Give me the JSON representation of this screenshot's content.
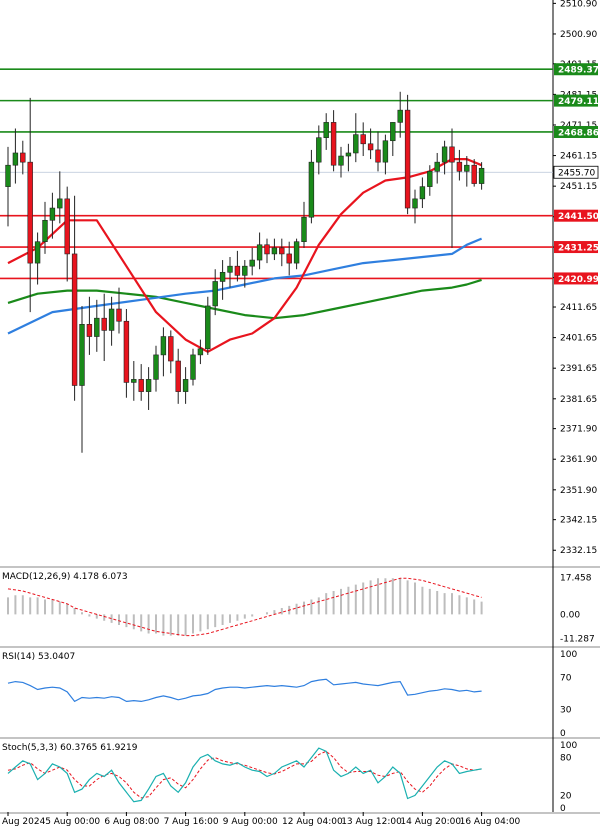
{
  "chart_data": {
    "type": "candlestick",
    "symbol": "",
    "price_axis": {
      "min": 2327.0,
      "max": 2512.0,
      "ticks": [
        "2510.90",
        "2500.90",
        "2491.15",
        "2481.15",
        "2471.15",
        "2461.15",
        "2451.15",
        "2441.15",
        "2431.25",
        "2421.25",
        "2411.65",
        "2401.65",
        "2391.65",
        "2381.65",
        "2371.90",
        "2361.90",
        "2351.90",
        "2342.15",
        "2332.15"
      ]
    },
    "last_price": {
      "label": "2455.70",
      "value": 2455.7,
      "color": "#ffffff"
    },
    "levels": [
      {
        "label": "2489.37",
        "value": 2489.37,
        "color": "#1a8a1a"
      },
      {
        "label": "2479.11",
        "value": 2479.11,
        "color": "#1a8a1a"
      },
      {
        "label": "2468.86",
        "value": 2468.86,
        "color": "#1a8a1a"
      },
      {
        "label": "2441.50",
        "value": 2441.5,
        "color": "#e8141e"
      },
      {
        "label": "2431.25",
        "value": 2431.25,
        "color": "#e8141e"
      },
      {
        "label": "2420.99",
        "value": 2420.99,
        "color": "#e8141e"
      }
    ],
    "candles": [
      {
        "o": 2451,
        "h": 2464,
        "l": 2438,
        "c": 2458
      },
      {
        "o": 2458,
        "h": 2470,
        "l": 2452,
        "c": 2462
      },
      {
        "o": 2462,
        "h": 2466,
        "l": 2455,
        "c": 2459
      },
      {
        "o": 2459,
        "h": 2480,
        "l": 2410,
        "c": 2426
      },
      {
        "o": 2426,
        "h": 2436,
        "l": 2419,
        "c": 2433
      },
      {
        "o": 2433,
        "h": 2446,
        "l": 2429,
        "c": 2440
      },
      {
        "o": 2440,
        "h": 2449,
        "l": 2434,
        "c": 2444
      },
      {
        "o": 2444,
        "h": 2456,
        "l": 2439,
        "c": 2447
      },
      {
        "o": 2447,
        "h": 2451,
        "l": 2420,
        "c": 2429
      },
      {
        "o": 2429,
        "h": 2448,
        "l": 2381,
        "c": 2386
      },
      {
        "o": 2386,
        "h": 2412,
        "l": 2364,
        "c": 2406
      },
      {
        "o": 2406,
        "h": 2415,
        "l": 2396,
        "c": 2402
      },
      {
        "o": 2402,
        "h": 2414,
        "l": 2397,
        "c": 2408
      },
      {
        "o": 2408,
        "h": 2416,
        "l": 2394,
        "c": 2404
      },
      {
        "o": 2404,
        "h": 2415,
        "l": 2399,
        "c": 2411
      },
      {
        "o": 2411,
        "h": 2418,
        "l": 2403,
        "c": 2407
      },
      {
        "o": 2407,
        "h": 2411,
        "l": 2382,
        "c": 2387
      },
      {
        "o": 2387,
        "h": 2394,
        "l": 2381,
        "c": 2388
      },
      {
        "o": 2388,
        "h": 2393,
        "l": 2381,
        "c": 2384
      },
      {
        "o": 2384,
        "h": 2392,
        "l": 2378,
        "c": 2388
      },
      {
        "o": 2388,
        "h": 2399,
        "l": 2384,
        "c": 2396
      },
      {
        "o": 2396,
        "h": 2405,
        "l": 2389,
        "c": 2402
      },
      {
        "o": 2402,
        "h": 2404,
        "l": 2390,
        "c": 2394
      },
      {
        "o": 2394,
        "h": 2398,
        "l": 2380,
        "c": 2384
      },
      {
        "o": 2384,
        "h": 2392,
        "l": 2380,
        "c": 2388
      },
      {
        "o": 2388,
        "h": 2398,
        "l": 2386,
        "c": 2396
      },
      {
        "o": 2396,
        "h": 2401,
        "l": 2393,
        "c": 2398
      },
      {
        "o": 2398,
        "h": 2415,
        "l": 2396,
        "c": 2412
      },
      {
        "o": 2412,
        "h": 2424,
        "l": 2409,
        "c": 2420
      },
      {
        "o": 2420,
        "h": 2427,
        "l": 2414,
        "c": 2423
      },
      {
        "o": 2423,
        "h": 2428,
        "l": 2418,
        "c": 2425
      },
      {
        "o": 2425,
        "h": 2430,
        "l": 2420,
        "c": 2422
      },
      {
        "o": 2422,
        "h": 2427,
        "l": 2418,
        "c": 2425
      },
      {
        "o": 2425,
        "h": 2431,
        "l": 2422,
        "c": 2427
      },
      {
        "o": 2427,
        "h": 2436,
        "l": 2424,
        "c": 2432
      },
      {
        "o": 2432,
        "h": 2434,
        "l": 2426,
        "c": 2429
      },
      {
        "o": 2429,
        "h": 2434,
        "l": 2427,
        "c": 2431
      },
      {
        "o": 2431,
        "h": 2434,
        "l": 2425,
        "c": 2429
      },
      {
        "o": 2429,
        "h": 2433,
        "l": 2422,
        "c": 2426
      },
      {
        "o": 2426,
        "h": 2434,
        "l": 2424,
        "c": 2433
      },
      {
        "o": 2433,
        "h": 2446,
        "l": 2431,
        "c": 2441
      },
      {
        "o": 2441,
        "h": 2463,
        "l": 2439,
        "c": 2459
      },
      {
        "o": 2459,
        "h": 2471,
        "l": 2455,
        "c": 2467
      },
      {
        "o": 2467,
        "h": 2475,
        "l": 2463,
        "c": 2472
      },
      {
        "o": 2472,
        "h": 2476,
        "l": 2456,
        "c": 2458
      },
      {
        "o": 2458,
        "h": 2464,
        "l": 2454,
        "c": 2461
      },
      {
        "o": 2461,
        "h": 2465,
        "l": 2456,
        "c": 2462
      },
      {
        "o": 2462,
        "h": 2475,
        "l": 2459,
        "c": 2468
      },
      {
        "o": 2468,
        "h": 2472,
        "l": 2461,
        "c": 2465
      },
      {
        "o": 2465,
        "h": 2470,
        "l": 2460,
        "c": 2463
      },
      {
        "o": 2463,
        "h": 2469,
        "l": 2456,
        "c": 2459
      },
      {
        "o": 2459,
        "h": 2468,
        "l": 2455,
        "c": 2466
      },
      {
        "o": 2466,
        "h": 2472,
        "l": 2461,
        "c": 2472
      },
      {
        "o": 2472,
        "h": 2482,
        "l": 2467,
        "c": 2476
      },
      {
        "o": 2476,
        "h": 2481,
        "l": 2442,
        "c": 2444
      },
      {
        "o": 2444,
        "h": 2450,
        "l": 2439,
        "c": 2447
      },
      {
        "o": 2447,
        "h": 2454,
        "l": 2444,
        "c": 2451
      },
      {
        "o": 2451,
        "h": 2458,
        "l": 2448,
        "c": 2456
      },
      {
        "o": 2456,
        "h": 2462,
        "l": 2452,
        "c": 2459
      },
      {
        "o": 2459,
        "h": 2466,
        "l": 2455,
        "c": 2464
      },
      {
        "o": 2464,
        "h": 2470,
        "l": 2431,
        "c": 2459
      },
      {
        "o": 2459,
        "h": 2463,
        "l": 2453,
        "c": 2456
      },
      {
        "o": 2456,
        "h": 2461,
        "l": 2451,
        "c": 2458
      },
      {
        "o": 2458,
        "h": 2460,
        "l": 2451,
        "c": 2452
      },
      {
        "o": 2452,
        "h": 2459,
        "l": 2450,
        "c": 2457
      }
    ],
    "ma_fast": {
      "color": "#e8141e",
      "points": [
        [
          0,
          2426
        ],
        [
          4,
          2431
        ],
        [
          8,
          2440
        ],
        [
          12,
          2440
        ],
        [
          16,
          2425
        ],
        [
          20,
          2410
        ],
        [
          24,
          2401
        ],
        [
          27,
          2397
        ],
        [
          30,
          2401
        ],
        [
          33,
          2403
        ],
        [
          36,
          2408
        ],
        [
          39,
          2418
        ],
        [
          42,
          2432
        ],
        [
          45,
          2442
        ],
        [
          48,
          2449
        ],
        [
          51,
          2453
        ],
        [
          54,
          2454
        ],
        [
          57,
          2456
        ],
        [
          60,
          2460
        ],
        [
          62,
          2460
        ],
        [
          64,
          2458
        ]
      ]
    },
    "ma_mid": {
      "color": "#2f7fdf",
      "points": [
        [
          0,
          2403
        ],
        [
          6,
          2410
        ],
        [
          12,
          2412
        ],
        [
          18,
          2414
        ],
        [
          24,
          2416
        ],
        [
          28,
          2417
        ],
        [
          32,
          2419
        ],
        [
          36,
          2421
        ],
        [
          40,
          2422
        ],
        [
          44,
          2424
        ],
        [
          48,
          2426
        ],
        [
          52,
          2427
        ],
        [
          56,
          2428
        ],
        [
          60,
          2429
        ],
        [
          62,
          2432
        ],
        [
          64,
          2434
        ]
      ]
    },
    "ma_slow": {
      "color": "#1a8a1a",
      "points": [
        [
          0,
          2413
        ],
        [
          4,
          2416
        ],
        [
          8,
          2417
        ],
        [
          12,
          2417
        ],
        [
          16,
          2416
        ],
        [
          20,
          2415
        ],
        [
          24,
          2413
        ],
        [
          28,
          2411
        ],
        [
          32,
          2409
        ],
        [
          36,
          2408
        ],
        [
          40,
          2409
        ],
        [
          44,
          2411
        ],
        [
          48,
          2413
        ],
        [
          52,
          2415
        ],
        [
          56,
          2417
        ],
        [
          60,
          2418
        ],
        [
          62,
          2419
        ],
        [
          64,
          2420.5
        ]
      ]
    },
    "x_labels": [
      "Aug 2024",
      "5 Aug 00:00",
      "6 Aug 08:00",
      "7 Aug 16:00",
      "9 Aug 00:00",
      "12 Aug 04:00",
      "13 Aug 12:00",
      "14 Aug 20:00",
      "16 Aug 04:00"
    ],
    "x_label_index": [
      0,
      8,
      16,
      24,
      32,
      40,
      48,
      56,
      64
    ],
    "macd": {
      "title": "MACD(12,26,9) 4.178 6.073",
      "axis_ticks": [
        "17.458",
        "0.00",
        "-11.287"
      ],
      "axis_values": [
        17.458,
        0.0,
        -11.287
      ],
      "range": [
        -13,
        19
      ],
      "hist": [
        8,
        9,
        9,
        8,
        8,
        7,
        7,
        6,
        5,
        3,
        1,
        -1,
        -2,
        -3,
        -4,
        -5,
        -6,
        -7,
        -8,
        -9,
        -9,
        -10,
        -10,
        -10,
        -10,
        -9,
        -8,
        -7,
        -6,
        -5,
        -4,
        -3,
        -2,
        -1,
        0,
        1,
        2,
        3,
        4,
        5,
        6,
        7,
        8,
        10,
        11,
        12,
        13,
        14,
        15,
        16,
        17,
        17,
        17,
        17,
        16,
        15,
        13,
        12,
        11,
        10,
        10,
        9,
        8,
        7,
        6
      ],
      "signal": [
        12,
        11.5,
        11,
        10,
        9,
        8,
        7,
        6,
        5,
        3,
        2,
        1,
        0,
        -1,
        -2,
        -3,
        -4,
        -5,
        -6,
        -7,
        -8,
        -8.5,
        -9,
        -9.5,
        -10,
        -10,
        -9.5,
        -9,
        -8,
        -7,
        -6,
        -5,
        -4,
        -3,
        -2,
        -1,
        0,
        1,
        2,
        3,
        4,
        5,
        6,
        7,
        8,
        9,
        10,
        11,
        12,
        13,
        14,
        15,
        16,
        17,
        17,
        16.5,
        16,
        15,
        14,
        13,
        12,
        11,
        10,
        9,
        8
      ]
    },
    "rsi": {
      "title": "RSI(14) 53.0407",
      "axis_ticks": [
        "100",
        "70",
        "30",
        "0"
      ],
      "axis_values": [
        100,
        70,
        30,
        0
      ],
      "color": "#2f7fdf",
      "values": [
        63,
        65,
        64,
        60,
        55,
        57,
        58,
        57,
        52,
        40,
        45,
        44,
        45,
        44,
        46,
        45,
        40,
        41,
        40,
        42,
        45,
        47,
        45,
        42,
        44,
        47,
        48,
        50,
        55,
        57,
        58,
        58,
        57,
        58,
        59,
        60,
        59,
        60,
        59,
        58,
        60,
        65,
        67,
        68,
        61,
        62,
        63,
        64,
        62,
        61,
        60,
        62,
        64,
        65,
        48,
        49,
        51,
        53,
        54,
        56,
        55,
        53,
        54,
        52,
        53
      ]
    },
    "stoch": {
      "title": "Stoch(5,3,3) 60.3765 61.9219",
      "axis_ticks": [
        "100",
        "80",
        "20",
        "0"
      ],
      "axis_values": [
        100,
        80,
        20,
        0
      ],
      "k_color": "#1ab0b0",
      "d_color": "#e8141e",
      "k": [
        55,
        65,
        75,
        70,
        45,
        55,
        70,
        65,
        55,
        25,
        30,
        45,
        55,
        50,
        60,
        40,
        25,
        10,
        12,
        30,
        50,
        55,
        35,
        25,
        40,
        65,
        80,
        85,
        75,
        70,
        68,
        72,
        65,
        60,
        58,
        50,
        55,
        65,
        70,
        75,
        65,
        80,
        95,
        90,
        60,
        50,
        55,
        65,
        55,
        60,
        40,
        50,
        65,
        55,
        15,
        20,
        35,
        50,
        65,
        75,
        70,
        55,
        58,
        60,
        62
      ],
      "d": [
        60,
        62,
        68,
        72,
        62,
        55,
        60,
        65,
        60,
        45,
        35,
        35,
        45,
        52,
        55,
        50,
        40,
        25,
        16,
        18,
        32,
        45,
        48,
        38,
        32,
        45,
        62,
        76,
        80,
        75,
        72,
        70,
        68,
        64,
        60,
        56,
        54,
        58,
        64,
        70,
        70,
        74,
        85,
        90,
        80,
        65,
        56,
        58,
        58,
        58,
        52,
        50,
        55,
        58,
        42,
        30,
        25,
        35,
        50,
        62,
        70,
        67,
        62,
        60,
        62
      ]
    }
  }
}
